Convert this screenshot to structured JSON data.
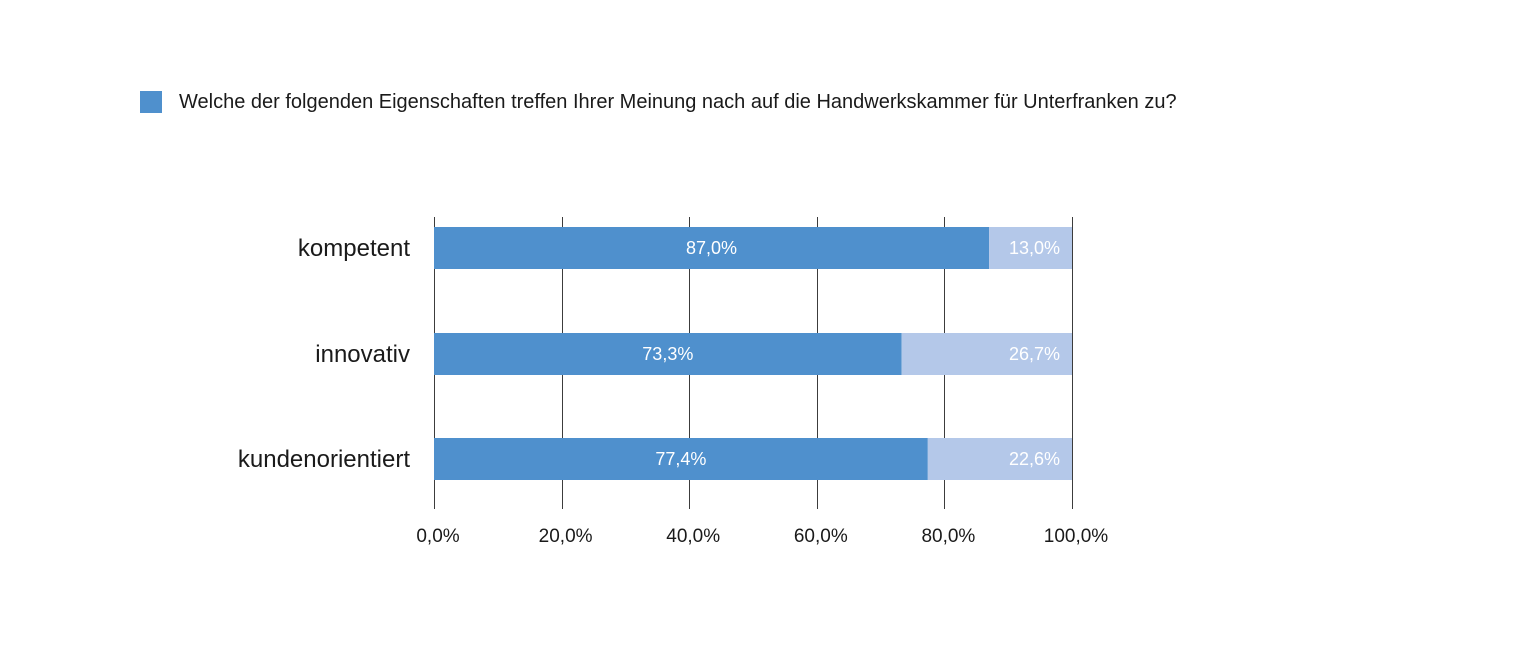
{
  "chart_data": {
    "type": "bar",
    "orientation": "horizontal",
    "stacked": true,
    "categories": [
      "kompetent",
      "innovativ",
      "kundenorientiert"
    ],
    "series": [
      {
        "name": "Welche der folgenden Eigenschaften treffen Ihrer Meinung nach auf die Handwerkskammer für Unterfranken zu?",
        "values": [
          87.0,
          73.3,
          77.4
        ],
        "labels": [
          "87,0%",
          "73,3%",
          "77,4%"
        ],
        "color": "#4f90cd"
      },
      {
        "values": [
          13.0,
          26.7,
          22.6
        ],
        "labels": [
          "13,0%",
          "26,7%",
          "22,6%"
        ],
        "color": "#b4c8e9"
      }
    ],
    "xlim": [
      0,
      100
    ],
    "xticks": [
      0,
      20,
      40,
      60,
      80,
      100
    ],
    "xtick_labels": [
      "0,0%",
      "20,0%",
      "40,0%",
      "60,0%",
      "80,0%",
      "100,0%"
    ],
    "grid": true,
    "legend_position": "top-left"
  }
}
